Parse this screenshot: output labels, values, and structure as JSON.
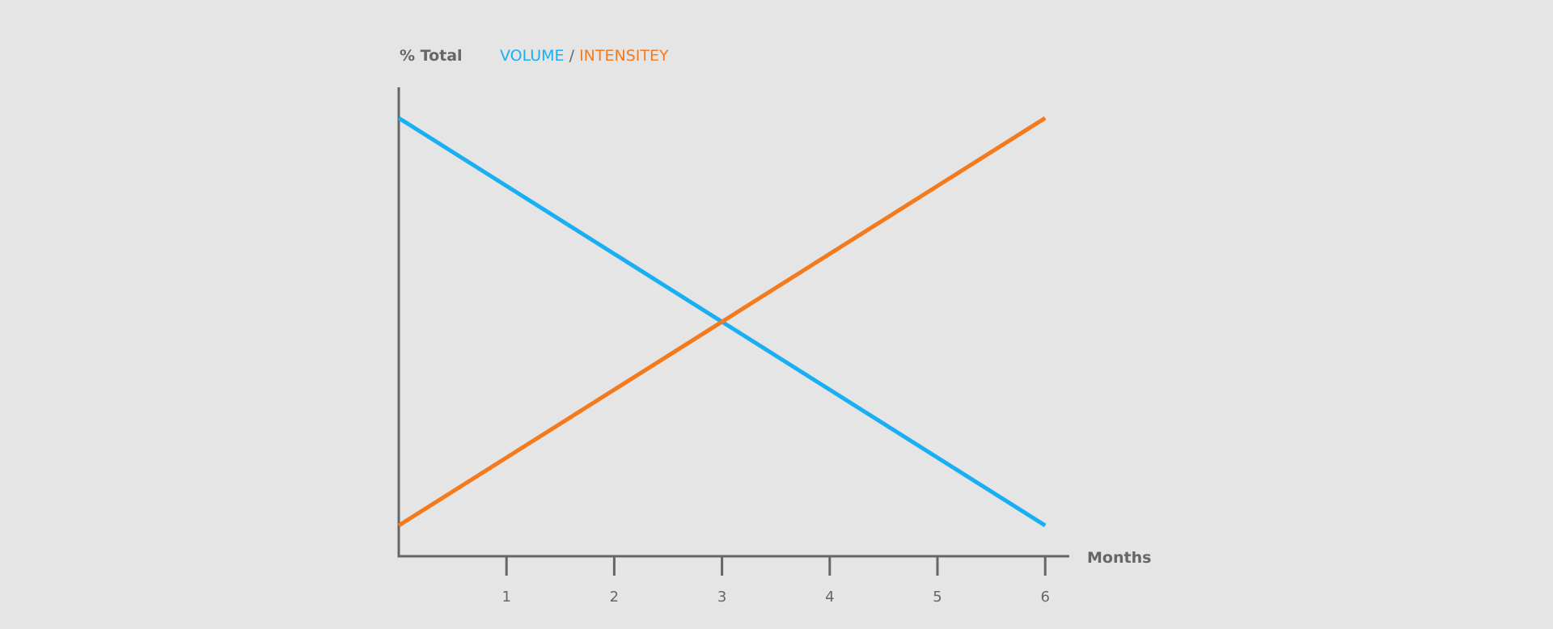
{
  "chart_data": {
    "type": "line",
    "title": "",
    "ylabel": "% Total",
    "xlabel": "Months",
    "x": [
      0,
      6
    ],
    "xticks": [
      1,
      2,
      3,
      4,
      5,
      6
    ],
    "xlim": [
      0,
      6
    ],
    "ylim": [
      0,
      100
    ],
    "grid": false,
    "legend_placement": "top",
    "legend_separator": "/",
    "series": [
      {
        "name": "VOLUME",
        "color": "#1aaef2",
        "values": [
          100,
          0
        ]
      },
      {
        "name": "INTENSITEY",
        "color": "#f47a1e",
        "values": [
          0,
          100
        ]
      }
    ],
    "axis_color": "#666666"
  }
}
